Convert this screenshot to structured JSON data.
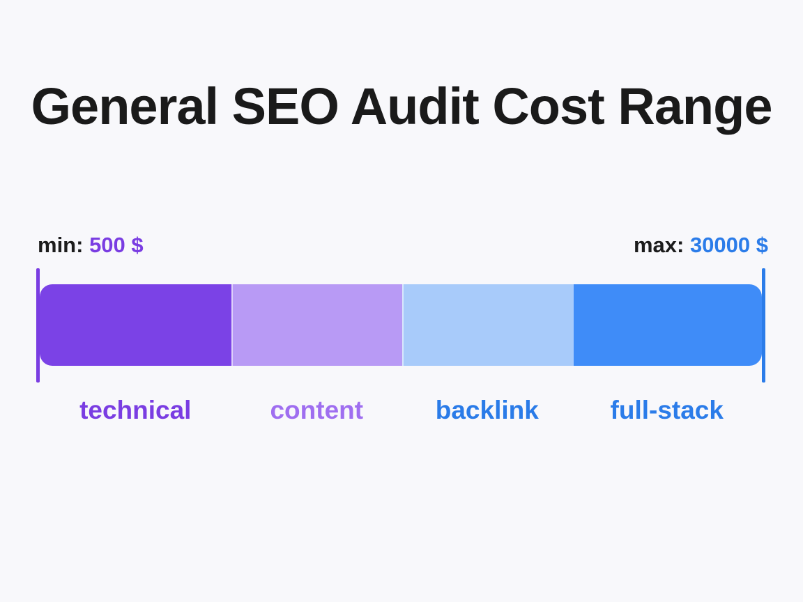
{
  "chart_data": {
    "type": "bar",
    "title": "General SEO Audit Cost Range",
    "min": {
      "label": "min:",
      "value": "500 $"
    },
    "max": {
      "label": "max:",
      "value": "30000 $"
    },
    "segments": [
      {
        "name": "technical",
        "fill": "#7b42e6",
        "text_color": "#7a3de2",
        "share": 0.265
      },
      {
        "name": "content",
        "fill": "#b89af5",
        "text_color": "#9f6ef0",
        "share": 0.237
      },
      {
        "name": "backlink",
        "fill": "#a8cbfa",
        "text_color": "#2a7be8",
        "share": 0.235
      },
      {
        "name": "full-stack",
        "fill": "#3f8cf8",
        "text_color": "#2b7ce9",
        "share": 0.263
      }
    ],
    "colors": {
      "min_accent": "#7a3de2",
      "max_accent": "#2b7ce9"
    }
  }
}
